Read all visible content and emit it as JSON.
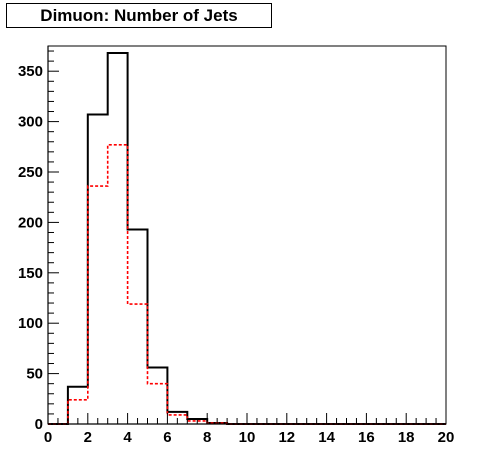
{
  "chart_data": {
    "type": "histogram",
    "title": "Dimuon: Number of Jets",
    "xlabel": "",
    "ylabel": "",
    "xlim": [
      0,
      20
    ],
    "ylim": [
      0,
      375
    ],
    "x_ticks": [
      0,
      2,
      4,
      6,
      8,
      10,
      12,
      14,
      16,
      18,
      20
    ],
    "y_ticks": [
      0,
      50,
      100,
      150,
      200,
      250,
      300,
      350
    ],
    "bin_edges": [
      0,
      1,
      2,
      3,
      4,
      5,
      6,
      7,
      8,
      9,
      10,
      11,
      12,
      13,
      14,
      15,
      16,
      17,
      18,
      19,
      20
    ],
    "series": [
      {
        "color": "#000000",
        "style": "solid",
        "values": [
          0,
          37,
          307,
          368,
          193,
          56,
          12,
          5,
          1,
          0,
          0,
          0,
          0,
          0,
          0,
          0,
          0,
          0,
          0,
          0
        ]
      },
      {
        "color": "#ff0000",
        "style": "dashed",
        "values": [
          0,
          24,
          236,
          277,
          119,
          40,
          9,
          3,
          1,
          0,
          0,
          0,
          0,
          0,
          0,
          0,
          0,
          0,
          0,
          0
        ]
      }
    ],
    "grid": false,
    "legend": "none"
  }
}
